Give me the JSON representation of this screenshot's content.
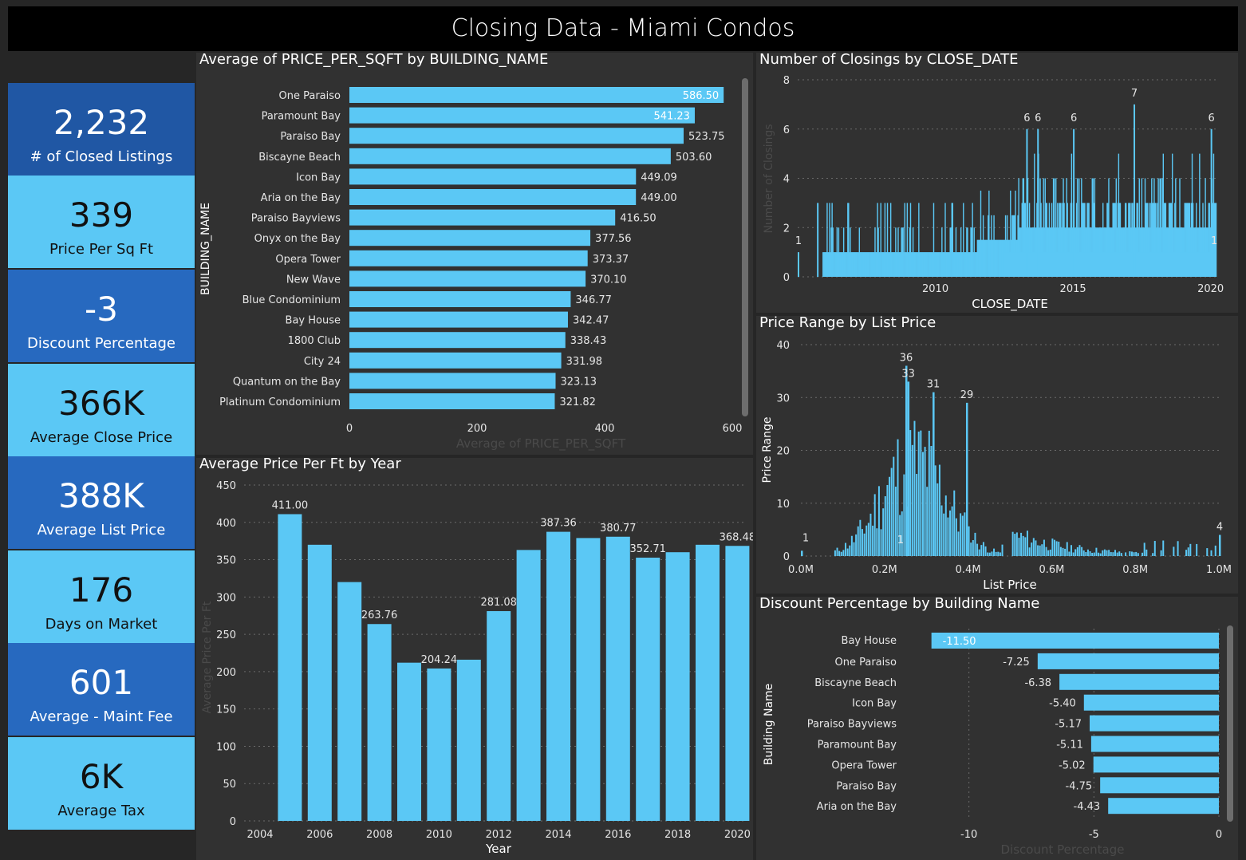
{
  "page_title": "Closing Data - Miami Condos",
  "kpis": [
    {
      "value": "2,232",
      "label": "# of Closed Listings",
      "tone": "dark"
    },
    {
      "value": "339",
      "label": "Price Per Sq Ft",
      "tone": "light"
    },
    {
      "value": "-3",
      "label": "Discount Percentage",
      "tone": "dark"
    },
    {
      "value": "366K",
      "label": "Average Close Price",
      "tone": "light"
    },
    {
      "value": "388K",
      "label": "Average List Price",
      "tone": "dark"
    },
    {
      "value": "176",
      "label": "Days on Market",
      "tone": "light"
    },
    {
      "value": "601",
      "label": "Average - Maint Fee",
      "tone": "dark"
    },
    {
      "value": "6K",
      "label": "Average Tax",
      "tone": "light"
    }
  ],
  "colors": {
    "bar": "#5bc8f5",
    "kpi_dark": "#2057a4",
    "kpi_dark_alt": "#2769bf",
    "kpi_light": "#5bc8f5",
    "panel": "#313131",
    "grid": "#6a6a6a"
  },
  "chart_data": [
    {
      "id": "price-per-sqft",
      "type": "bar",
      "orientation": "horizontal",
      "title": "Average of PRICE_PER_SQFT by BUILDING_NAME",
      "xlabel": "Average of PRICE_PER_SQFT",
      "ylabel": "BUILDING_NAME",
      "xlim": [
        0,
        600
      ],
      "xticks": [
        "0",
        "200",
        "400",
        "600"
      ],
      "categories": [
        "One Paraiso",
        "Paramount Bay",
        "Paraiso Bay",
        "Biscayne Beach",
        "Icon Bay",
        "Aria on the Bay",
        "Paraiso Bayviews",
        "Onyx on the Bay",
        "Opera Tower",
        "New Wave",
        "Blue Condominium",
        "Bay House",
        "1800 Club",
        "City 24",
        "Quantum on the Bay",
        "Platinum Condominium"
      ],
      "values": [
        586.5,
        541.23,
        523.75,
        503.6,
        449.09,
        449.0,
        416.5,
        377.56,
        373.37,
        370.1,
        346.77,
        342.47,
        338.43,
        331.98,
        323.13,
        321.82
      ],
      "labels": [
        "586.50",
        "541.23",
        "523.75",
        "503.60",
        "449.09",
        "449.00",
        "416.50",
        "377.56",
        "373.37",
        "370.10",
        "346.77",
        "342.47",
        "338.43",
        "331.98",
        "323.13",
        "321.82"
      ]
    },
    {
      "id": "closings-by-date",
      "type": "bar",
      "title": "Number of Closings by CLOSE_DATE",
      "xlabel": "CLOSE_DATE",
      "ylabel": "Number of Closings",
      "ylim": [
        0,
        8
      ],
      "yticks": [
        "0",
        "2",
        "4",
        "6",
        "8"
      ],
      "xticks": [
        "2010",
        "2015",
        "2020"
      ],
      "xlim_years": [
        2005,
        2020.3
      ],
      "points": [
        {
          "x": 2005.0,
          "y": 1,
          "label": "1"
        },
        {
          "x": 2005.7,
          "y": 3
        },
        {
          "x": 2013.3,
          "y": 6,
          "label": "6"
        },
        {
          "x": 2013.7,
          "y": 6,
          "label": "6"
        },
        {
          "x": 2015.0,
          "y": 6,
          "label": "6"
        },
        {
          "x": 2017.2,
          "y": 7,
          "label": "7"
        },
        {
          "x": 2020.0,
          "y": 6,
          "label": "6"
        },
        {
          "x": 2020.1,
          "y": 1,
          "label": "1"
        }
      ]
    },
    {
      "id": "price-range",
      "type": "bar",
      "title": "Price Range by List Price",
      "xlabel": "List Price",
      "ylabel": "Price Range",
      "ylim": [
        0,
        40
      ],
      "yticks": [
        "0",
        "10",
        "20",
        "30",
        "40"
      ],
      "xticks": [
        "0.0M",
        "0.2M",
        "0.4M",
        "0.6M",
        "0.8M",
        "1.0M"
      ],
      "xlim": [
        0,
        1000000
      ],
      "points": [
        {
          "x": 0,
          "y": 1,
          "label": "1"
        },
        {
          "x": 250000,
          "y": 36,
          "label": "36"
        },
        {
          "x": 255000,
          "y": 33,
          "label": "33"
        },
        {
          "x": 315000,
          "y": 31,
          "label": "31"
        },
        {
          "x": 395000,
          "y": 29,
          "label": "29"
        },
        {
          "x": 250000,
          "y": 1,
          "label": "1"
        },
        {
          "x": 1000000,
          "y": 4,
          "label": "4"
        }
      ]
    },
    {
      "id": "price-by-year",
      "type": "bar",
      "title": "Average Price Per Ft by Year",
      "xlabel": "Year",
      "ylabel": "Average Price Per Ft",
      "ylim": [
        0,
        450
      ],
      "yticks": [
        "0",
        "50",
        "100",
        "150",
        "200",
        "250",
        "300",
        "350",
        "400",
        "450"
      ],
      "xticks": [
        "2004",
        "2006",
        "2008",
        "2010",
        "2012",
        "2014",
        "2016",
        "2018",
        "2020"
      ],
      "x": [
        2005,
        2006,
        2007,
        2008,
        2009,
        2010,
        2011,
        2012,
        2013,
        2014,
        2015,
        2016,
        2017,
        2018,
        2019,
        2020
      ],
      "values": [
        411.0,
        370,
        320,
        263.76,
        212,
        204.24,
        216,
        281.08,
        363,
        387.36,
        379,
        380.77,
        352.71,
        360,
        370,
        368.48
      ],
      "labels": [
        "411.00",
        "",
        "",
        "263.76",
        "",
        "204.24",
        "",
        "281.08",
        "",
        "387.36",
        "",
        "380.77",
        "352.71",
        "",
        "",
        "368.48"
      ]
    },
    {
      "id": "discount-by-building",
      "type": "bar",
      "orientation": "horizontal",
      "title": "Discount Percentage by Building Name",
      "xlabel": "Discount Percentage",
      "ylabel": "Building Name",
      "xlim": [
        -12,
        0
      ],
      "xticks": [
        "-10",
        "-5",
        "0"
      ],
      "categories": [
        "Bay House",
        "One Paraiso",
        "Biscayne Beach",
        "Icon Bay",
        "Paraiso Bayviews",
        "Paramount Bay",
        "Opera Tower",
        "Paraiso Bay",
        "Aria on the Bay"
      ],
      "values": [
        -11.5,
        -7.25,
        -6.38,
        -5.4,
        -5.17,
        -5.11,
        -5.02,
        -4.75,
        -4.43
      ],
      "labels": [
        "-11.50",
        "-7.25",
        "-6.38",
        "-5.40",
        "-5.17",
        "-5.11",
        "-5.02",
        "-4.75",
        "-4.43"
      ]
    }
  ]
}
